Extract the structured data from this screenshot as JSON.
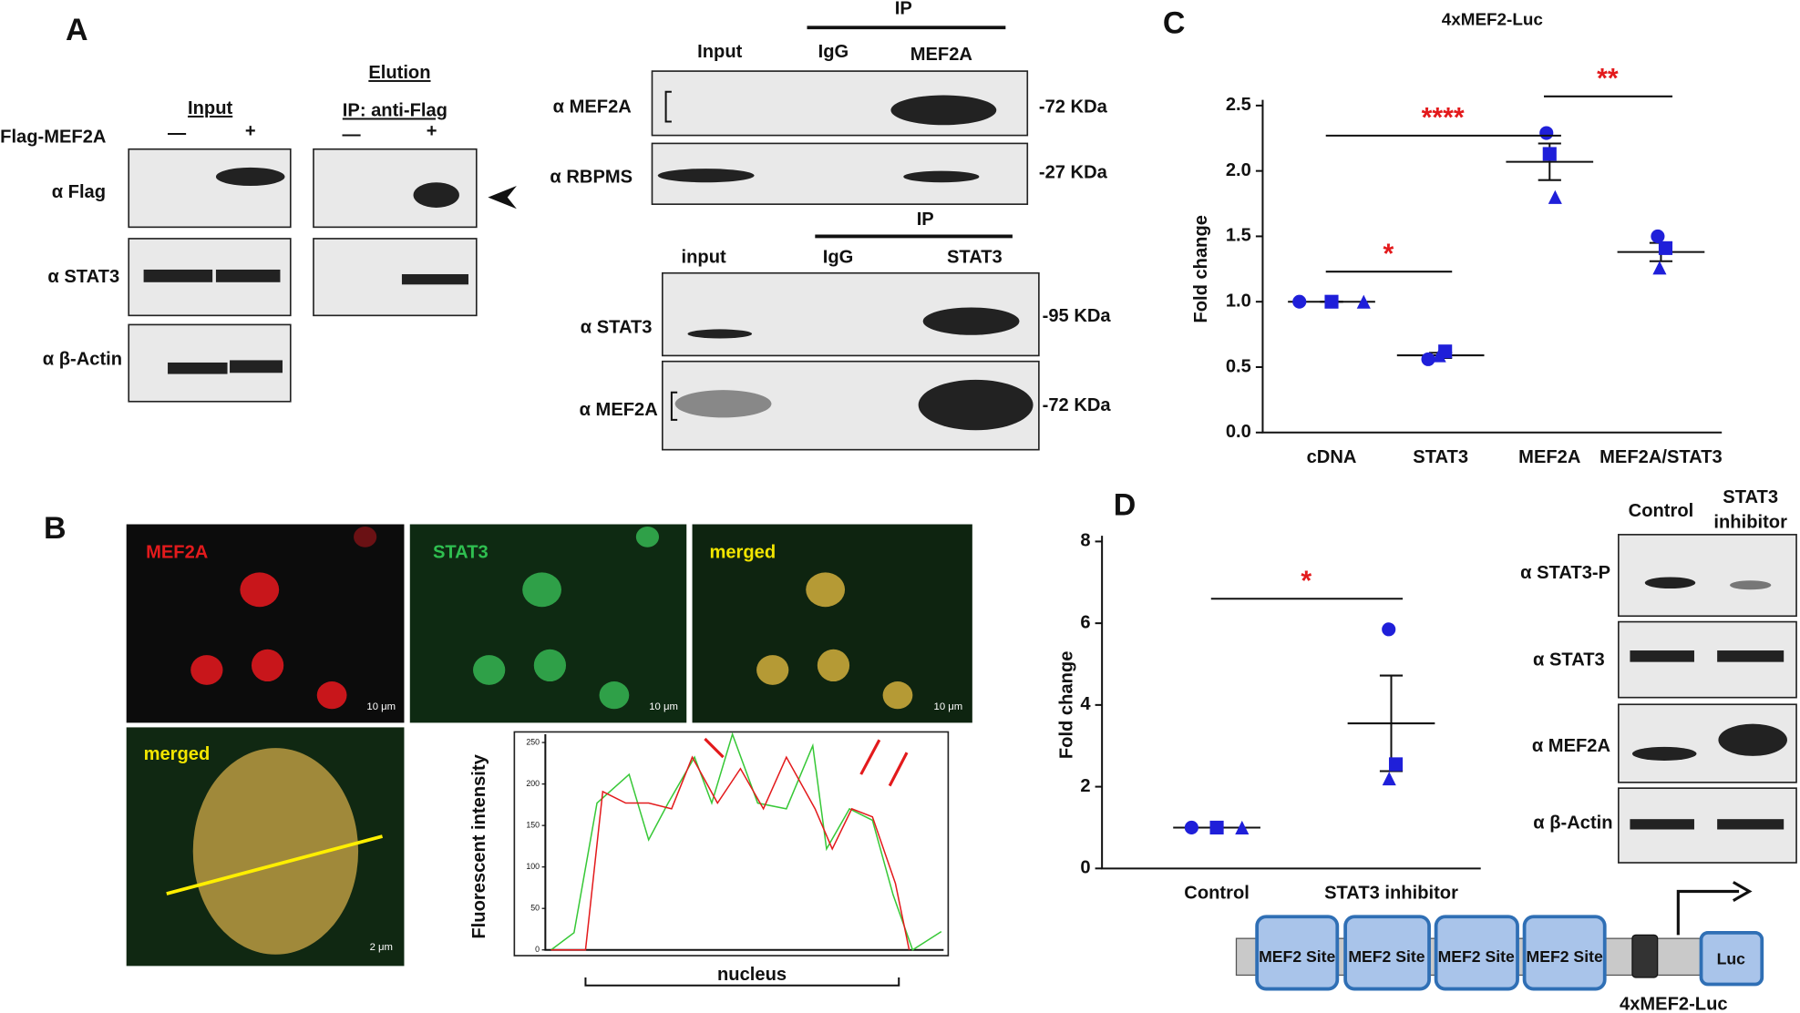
{
  "panels": {
    "A": {
      "label": "A",
      "left": {
        "input": "Input",
        "elution": "Elution",
        "ip": "IP: anti-Flag",
        "flag_mef2a": "Flag-MEF2A",
        "minus": "—",
        "plus": "+",
        "rows": [
          "α Flag",
          "α STAT3",
          "α β-Actin"
        ]
      },
      "top": {
        "ip": "IP",
        "lanes": [
          "Input",
          "IgG",
          "MEF2A"
        ],
        "rows": [
          "α MEF2A",
          "α RBPMS"
        ],
        "sizes": [
          "-72 KDa",
          "-27 KDa"
        ]
      },
      "bottom": {
        "ip": "IP",
        "lanes": [
          "input",
          "IgG",
          "STAT3"
        ],
        "rows": [
          "α STAT3",
          "α MEF2A"
        ],
        "sizes": [
          "-95 KDa",
          "-72 KDa"
        ]
      }
    },
    "B": {
      "label": "B",
      "channels": [
        "MEF2A",
        "STAT3",
        "merged"
      ],
      "scale": "10 μm",
      "zoom_label": "merged",
      "zoom_scale": "2 μm",
      "profile": {
        "ylabel": "Fluorescent intensity",
        "xlabel": "nucleus",
        "ylim": [
          0,
          260
        ],
        "yticks": [
          0,
          50,
          100,
          150,
          200,
          250
        ]
      }
    },
    "C": {
      "label": "C",
      "chart": {
        "type": "scatter-dot",
        "title": "4xMEF2-Luc",
        "ylabel": "Fold change",
        "categories": [
          "cDNA",
          "STAT3",
          "MEF2A",
          "MEF2A/STAT3"
        ],
        "ylim": [
          0,
          2.5
        ],
        "yticks": [
          {
            "value": 0,
            "label": "0.0"
          },
          0.5,
          {
            "value": 1,
            "label": "1.0"
          },
          1.5,
          {
            "value": 2,
            "label": "2.0"
          },
          2.5
        ],
        "color": "#1f1fd9",
        "series": [
          {
            "marker": "circle",
            "values": [
              1,
              0.56,
              2.29,
              1.5
            ]
          },
          {
            "marker": "square",
            "values": [
              1,
              0.62,
              2.13,
              1.41
            ]
          },
          {
            "marker": "triangle",
            "values": [
              1,
              0.59,
              1.8,
              1.26
            ]
          }
        ],
        "mean": [
          1,
          0.59,
          2.07,
          1.38
        ],
        "sem": [
          0,
          0.02,
          0.14,
          0.07
        ],
        "significance": [
          {
            "from": 0,
            "to": 2,
            "y": 2.27,
            "label": "****"
          },
          {
            "from": 2,
            "to": 3,
            "y": 2.57,
            "label": "**"
          },
          {
            "from": 0,
            "to": 1,
            "y": 1.23,
            "label": "*"
          }
        ]
      }
    },
    "D": {
      "label": "D",
      "chart": {
        "type": "scatter-dot",
        "ylabel": "Fold change",
        "categories": [
          "Control",
          "STAT3 inhibitor"
        ],
        "ylim": [
          0,
          8
        ],
        "yticks": [
          0,
          2,
          4,
          6,
          8
        ],
        "color": "#1f1fd9",
        "series": [
          {
            "marker": "circle",
            "values": [
              1,
              5.85
            ]
          },
          {
            "marker": "square",
            "values": [
              1,
              2.55
            ]
          },
          {
            "marker": "triangle",
            "values": [
              1,
              2.2
            ]
          }
        ],
        "mean": [
          1,
          3.55
        ],
        "sem": [
          0,
          1.17
        ],
        "significance": [
          {
            "from": 0,
            "to": 1,
            "y": 6.6,
            "label": "*"
          }
        ]
      },
      "blot": {
        "lane1": "Control",
        "lane2": [
          "STAT3",
          "inhibitor"
        ],
        "rows": [
          "α STAT3-P",
          "α STAT3",
          "α MEF2A",
          "α β-Actin"
        ]
      },
      "construct": {
        "sites": [
          "MEF2 Site",
          "MEF2 Site",
          "MEF2 Site",
          "MEF2 Site"
        ],
        "reporter": "Luc",
        "name": "4xMEF2-Luc"
      }
    }
  }
}
